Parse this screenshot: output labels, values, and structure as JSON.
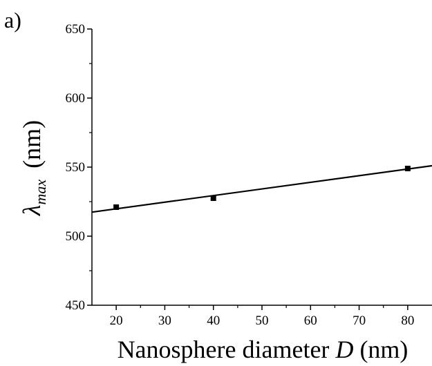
{
  "panel_label": "a)",
  "chart_data": {
    "type": "scatter",
    "xlabel": {
      "prefix": "Nanosphere diameter ",
      "italic": "D",
      "suffix": " (nm)"
    },
    "ylabel": {
      "symbol": "λ",
      "subscript": "max",
      "suffix": "(nm)"
    },
    "xlim": [
      15,
      85
    ],
    "ylim": [
      450,
      650
    ],
    "xticks": [
      20,
      30,
      40,
      50,
      60,
      70,
      80
    ],
    "yticks": [
      450,
      500,
      550,
      600,
      650
    ],
    "series": [
      {
        "points": [
          {
            "x": 20,
            "y": 521
          },
          {
            "x": 40,
            "y": 527.5
          },
          {
            "x": 80,
            "y": 549
          }
        ]
      }
    ],
    "fit_line": {
      "slope": 0.48,
      "intercept": 510.2,
      "x_range": [
        15,
        85
      ]
    },
    "grid": false,
    "legend": "none"
  }
}
